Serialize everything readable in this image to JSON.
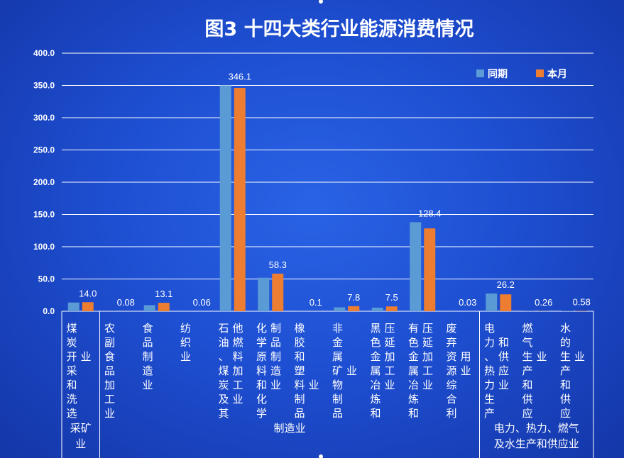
{
  "colors": {
    "series_prev": "#5b9bd5",
    "series_curr": "#ed7d31",
    "grid": "#ffffff",
    "background": "#1e4fd2"
  },
  "chart_data": {
    "type": "bar",
    "title": "图3  十四大类行业能源消费情况",
    "ylim": [
      0,
      400
    ],
    "yticks": [
      "0.0",
      "50.0",
      "100.0",
      "150.0",
      "200.0",
      "250.0",
      "300.0",
      "350.0",
      "400.0"
    ],
    "grid": true,
    "legend_position": "top-right",
    "categories": [
      {
        "label": "煤炭开采和洗选业",
        "lines": [
          [
            "煤",
            "炭",
            "开",
            "采",
            "和",
            "洗",
            "选"
          ],
          [
            "",
            "",
            "业"
          ]
        ]
      },
      {
        "label": "农副食品加工业",
        "lines": [
          [
            "农",
            "副",
            "食",
            "品",
            "加",
            "工",
            "业"
          ]
        ]
      },
      {
        "label": "食品制造业",
        "lines": [
          [
            "食",
            "品",
            "制",
            "造",
            "业"
          ]
        ]
      },
      {
        "label": "纺织业",
        "lines": [
          [
            "纺",
            "织",
            "业"
          ]
        ]
      },
      {
        "label": "石油、煤炭及其他燃料加工业",
        "lines": [
          [
            "石",
            "油",
            "、",
            "煤",
            "炭",
            "及",
            "其"
          ],
          [
            "他",
            "燃",
            "料",
            "加",
            "工",
            "业"
          ]
        ]
      },
      {
        "label": "化学原料和化学制品制造业",
        "lines": [
          [
            "化",
            "学",
            "原",
            "料",
            "和",
            "化",
            "学"
          ],
          [
            "制",
            "品",
            "制",
            "造",
            "业"
          ]
        ]
      },
      {
        "label": "橡胶和塑料制品业",
        "lines": [
          [
            "橡",
            "胶",
            "和",
            "塑",
            "料",
            "制",
            "品"
          ],
          [
            "",
            "",
            "",
            "",
            "业"
          ]
        ]
      },
      {
        "label": "非金属矿物制品业",
        "lines": [
          [
            "非",
            "金",
            "属",
            "矿",
            "物",
            "制",
            "品"
          ],
          [
            "",
            "",
            "",
            "业"
          ]
        ]
      },
      {
        "label": "黑色金属冶炼和压延加工业",
        "lines": [
          [
            "黑",
            "色",
            "金",
            "属",
            "冶",
            "炼",
            "和"
          ],
          [
            "压",
            "延",
            "加",
            "工",
            "业"
          ]
        ]
      },
      {
        "label": "有色金属冶炼和压延加工业",
        "lines": [
          [
            "有",
            "色",
            "金",
            "属",
            "冶",
            "炼",
            "和"
          ],
          [
            "压",
            "延",
            "加",
            "工",
            "业"
          ]
        ]
      },
      {
        "label": "废弃资源综合利用业",
        "lines": [
          [
            "废",
            "弃",
            "资",
            "源",
            "综",
            "合",
            "利"
          ],
          [
            "",
            "",
            "用",
            "业"
          ]
        ]
      },
      {
        "label": "电力、热力生产和供应业",
        "lines": [
          [
            "电",
            "力",
            "、",
            "热",
            "力",
            "生",
            "产"
          ],
          [
            "",
            "和",
            "供",
            "应",
            "业"
          ]
        ]
      },
      {
        "label": "燃气生产和供应业",
        "lines": [
          [
            "燃",
            "气",
            "生",
            "产",
            "和",
            "供",
            "应"
          ],
          [
            "",
            "",
            "业"
          ]
        ]
      },
      {
        "label": "水的生产和供应业",
        "lines": [
          [
            "水",
            "的",
            "生",
            "产",
            "和",
            "供",
            "应"
          ],
          [
            "",
            "",
            "业"
          ]
        ]
      }
    ],
    "series": [
      {
        "name": "同期",
        "color": "#5b9bd5",
        "values": [
          13.5,
          0.07,
          9.5,
          0.05,
          350.0,
          52.0,
          0.1,
          6.0,
          5.5,
          138.0,
          0.03,
          27.5,
          0.25,
          0.55
        ]
      },
      {
        "name": "本月",
        "color": "#ed7d31",
        "values": [
          14.0,
          0.08,
          13.1,
          0.06,
          346.1,
          58.3,
          0.1,
          7.8,
          7.5,
          128.4,
          0.03,
          26.2,
          0.26,
          0.58
        ]
      }
    ],
    "data_labels": [
      "14.0",
      "0.08",
      "13.1",
      "0.06",
      "346.1",
      "58.3",
      "0.1",
      "7.8",
      "7.5",
      "128.4",
      "0.03",
      "26.2",
      "0.26",
      "0.58"
    ],
    "groups": [
      {
        "label": "采矿业",
        "lines": [
          "采矿",
          "业"
        ],
        "from": 0,
        "to": 0
      },
      {
        "label": "制造业",
        "lines": [
          "制造业"
        ],
        "from": 1,
        "to": 10
      },
      {
        "label": "电力、热力、燃气及水生产和供应业",
        "lines": [
          "电力、热力、燃气",
          "及水生产和供应业"
        ],
        "from": 11,
        "to": 13
      }
    ]
  }
}
